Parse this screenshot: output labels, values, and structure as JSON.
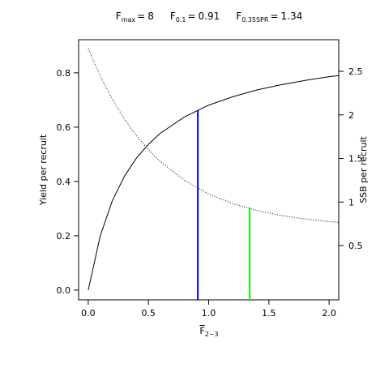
{
  "chart_data": {
    "type": "line",
    "title": [
      {
        "symbol": "F",
        "subscript": "max",
        "relation": "=",
        "value": 8
      },
      {
        "symbol": "F",
        "subscript": "0.1",
        "relation": "=",
        "value": 0.91
      },
      {
        "symbol": "F",
        "subscript": "0.35SPR",
        "relation": "=",
        "value": 1.34
      }
    ],
    "x_label": {
      "symbol": "F",
      "subscript": "2−3"
    },
    "y_label": "Yield per recruit",
    "y2_label": "SSB per recruit",
    "x": [
      0,
      0.1,
      0.2,
      0.3,
      0.4,
      0.5,
      0.6,
      0.8,
      1.0,
      1.2,
      1.4,
      1.6,
      1.8,
      2.0,
      2.08
    ],
    "series": [
      {
        "color": "#000000",
        "line_style": "solid",
        "values": [
          0,
          0.2,
          0.329,
          0.419,
          0.486,
          0.537,
          0.578,
          0.638,
          0.681,
          0.712,
          0.737,
          0.756,
          0.772,
          0.786,
          0.79
        ]
      },
      {
        "color": "#000000",
        "line_style": "dotted",
        "axis": "y2",
        "values": [
          2.76,
          2.445,
          2.179,
          1.953,
          1.763,
          1.6,
          1.462,
          1.248,
          1.093,
          0.982,
          0.903,
          0.846,
          0.805,
          0.775,
          0.766
        ]
      }
    ],
    "reference_lines": [
      {
        "x": 0.91,
        "y": 0.663,
        "color": "#0000ff"
      },
      {
        "x": 1.34,
        "y": 0.94,
        "axis": "y2",
        "color": "#00ff00"
      }
    ],
    "xlim": [
      -0.08,
      2.08
    ],
    "xticks": [
      {
        "value": 0,
        "label": "0.0"
      },
      {
        "value": 0.5,
        "label": "0.5"
      },
      {
        "value": 1,
        "label": "1.0"
      },
      {
        "value": 1.5,
        "label": "1.5"
      },
      {
        "value": 2,
        "label": "2.0"
      }
    ],
    "ylim": [
      -0.036,
      0.922
    ],
    "yticks": [
      {
        "value": 0,
        "label": "0.0"
      },
      {
        "value": 0.2,
        "label": "0.2"
      },
      {
        "value": 0.4,
        "label": "0.4"
      },
      {
        "value": 0.6,
        "label": "0.6"
      },
      {
        "value": 0.8,
        "label": "0.8"
      }
    ],
    "y2lim": [
      -0.123,
      2.863
    ],
    "y2ticks": [
      0.5,
      1,
      1.5,
      2,
      2.5
    ],
    "grid": false
  }
}
